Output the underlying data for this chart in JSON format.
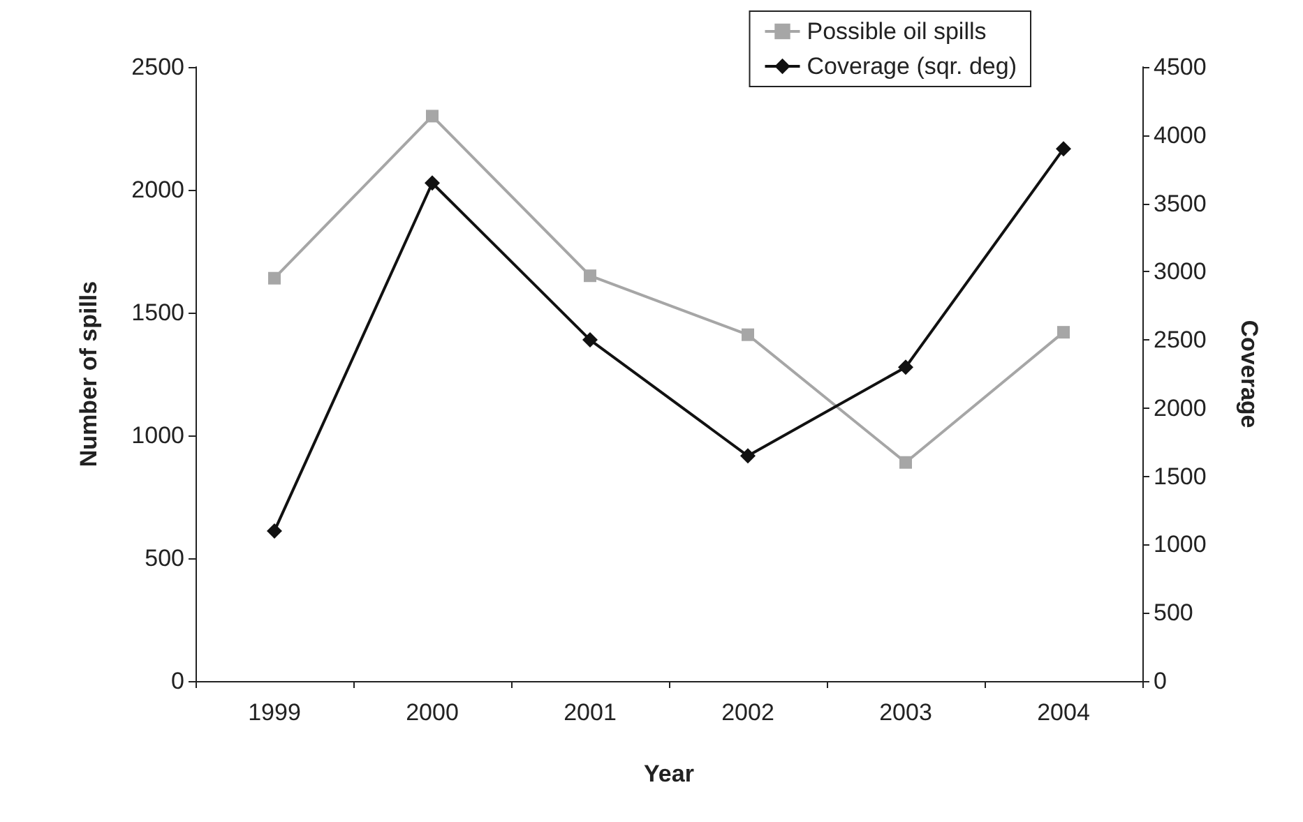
{
  "chart_data": {
    "type": "line",
    "xlabel": "Year",
    "ylabel": "Number of spills",
    "y2label": "Coverage",
    "categories": [
      "1999",
      "2000",
      "2001",
      "2002",
      "2003",
      "2004"
    ],
    "series": [
      {
        "name": "Possible oil spills",
        "color": "#a6a6a6",
        "marker": "square",
        "values": [
          1640,
          2300,
          1650,
          1410,
          890,
          1420
        ]
      },
      {
        "name": "Coverage (sqr. deg)",
        "color": "#111111",
        "marker": "diamond",
        "axis": "y2",
        "values": [
          1100,
          3650,
          2500,
          1650,
          2300,
          3900
        ]
      }
    ],
    "ylim": [
      0,
      2500
    ],
    "yticks": [
      0,
      500,
      1000,
      1500,
      2000,
      2500
    ],
    "y2lim": [
      0,
      4500
    ],
    "y2ticks": [
      0,
      500,
      1000,
      1500,
      2000,
      2500,
      3000,
      3500,
      4000,
      4500
    ],
    "grid": false,
    "legend": "top right"
  }
}
